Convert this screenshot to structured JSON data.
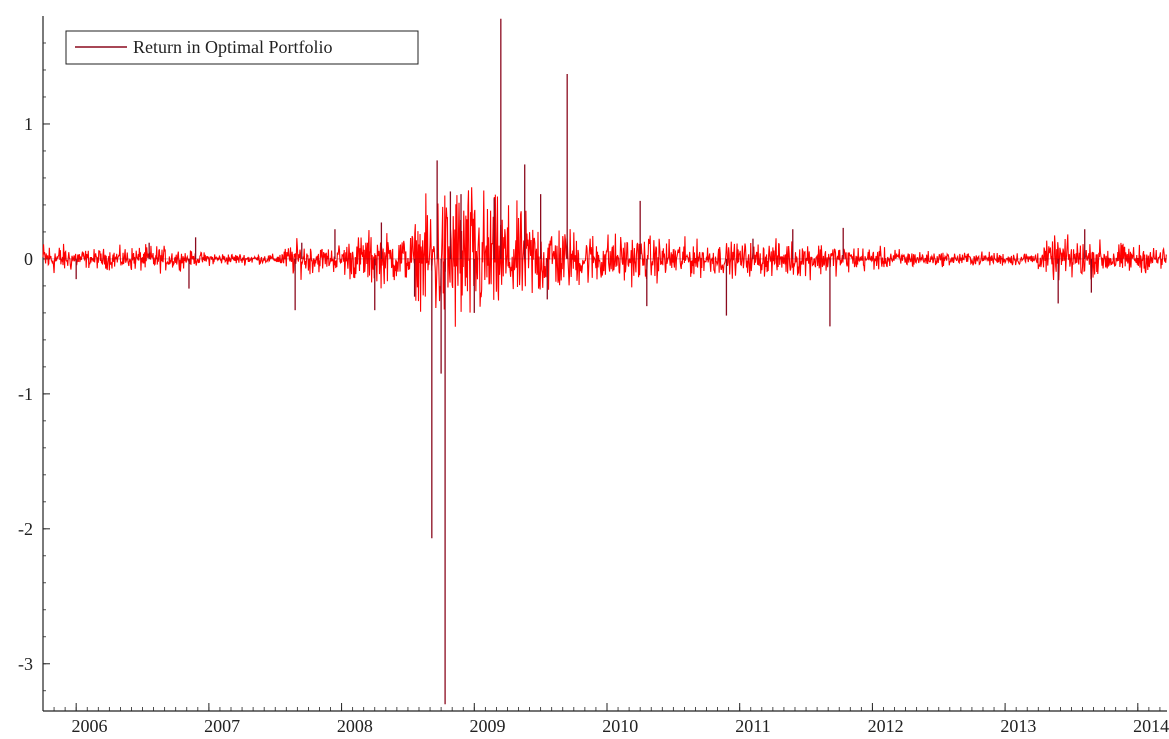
{
  "chart_data": {
    "type": "line",
    "title": "",
    "xlabel": "",
    "ylabel": "",
    "x_axis": {
      "range": [
        2005.75,
        2014.22
      ],
      "tick_labels": [
        "2006",
        "2007",
        "2008",
        "2009",
        "2010",
        "2011",
        "2012",
        "2013",
        "2014"
      ],
      "tick_values": [
        2006,
        2007,
        2008,
        2009,
        2010,
        2011,
        2012,
        2013,
        2014
      ]
    },
    "y_axis": {
      "range": [
        -3.35,
        1.8
      ],
      "tick_labels": [
        "-3",
        "-2",
        "-1",
        "0",
        "1"
      ],
      "tick_values": [
        -3,
        -2,
        -1,
        0,
        1
      ]
    },
    "grid": false,
    "legend": {
      "position": "top-left",
      "entries": [
        "Return in Optimal Portfolio"
      ]
    },
    "series": [
      {
        "name": "Return in Optimal Portfolio",
        "color": "#ff0000",
        "edge_color": "#8b0a1e",
        "sampling": "daily returns; representative amplitude envelope per period",
        "volatility_envelope": [
          {
            "x": 2005.75,
            "amp": 0.08
          },
          {
            "x": 2006.1,
            "amp": 0.04
          },
          {
            "x": 2006.6,
            "amp": 0.06
          },
          {
            "x": 2006.9,
            "amp": 0.03
          },
          {
            "x": 2007.5,
            "amp": 0.02
          },
          {
            "x": 2007.65,
            "amp": 0.08
          },
          {
            "x": 2007.9,
            "amp": 0.05
          },
          {
            "x": 2008.2,
            "amp": 0.12
          },
          {
            "x": 2008.5,
            "amp": 0.1
          },
          {
            "x": 2008.7,
            "amp": 0.3
          },
          {
            "x": 2008.9,
            "amp": 0.35
          },
          {
            "x": 2009.3,
            "amp": 0.22
          },
          {
            "x": 2009.8,
            "amp": 0.12
          },
          {
            "x": 2010.3,
            "amp": 0.1
          },
          {
            "x": 2010.8,
            "amp": 0.07
          },
          {
            "x": 2011.5,
            "amp": 0.08
          },
          {
            "x": 2011.8,
            "amp": 0.06
          },
          {
            "x": 2012.5,
            "amp": 0.03
          },
          {
            "x": 2013.2,
            "amp": 0.03
          },
          {
            "x": 2013.4,
            "amp": 0.1
          },
          {
            "x": 2013.8,
            "amp": 0.07
          },
          {
            "x": 2014.22,
            "amp": 0.05
          }
        ],
        "spikes": [
          {
            "x": 2006.0,
            "y": -0.15
          },
          {
            "x": 2006.55,
            "y": 0.12
          },
          {
            "x": 2006.85,
            "y": -0.22
          },
          {
            "x": 2006.9,
            "y": 0.16
          },
          {
            "x": 2007.65,
            "y": -0.38
          },
          {
            "x": 2007.7,
            "y": 0.12
          },
          {
            "x": 2007.95,
            "y": 0.22
          },
          {
            "x": 2008.25,
            "y": -0.38
          },
          {
            "x": 2008.3,
            "y": 0.27
          },
          {
            "x": 2008.55,
            "y": -0.28
          },
          {
            "x": 2008.68,
            "y": -2.07
          },
          {
            "x": 2008.72,
            "y": 0.73
          },
          {
            "x": 2008.75,
            "y": -0.85
          },
          {
            "x": 2008.78,
            "y": -3.3
          },
          {
            "x": 2008.82,
            "y": 0.5
          },
          {
            "x": 2008.9,
            "y": 0.48
          },
          {
            "x": 2009.0,
            "y": -0.4
          },
          {
            "x": 2009.15,
            "y": 0.45
          },
          {
            "x": 2009.2,
            "y": 1.78
          },
          {
            "x": 2009.38,
            "y": 0.7
          },
          {
            "x": 2009.5,
            "y": 0.48
          },
          {
            "x": 2009.55,
            "y": -0.3
          },
          {
            "x": 2009.7,
            "y": 1.37
          },
          {
            "x": 2010.25,
            "y": 0.43
          },
          {
            "x": 2010.3,
            "y": -0.35
          },
          {
            "x": 2010.9,
            "y": -0.42
          },
          {
            "x": 2011.1,
            "y": 0.15
          },
          {
            "x": 2011.4,
            "y": 0.22
          },
          {
            "x": 2011.68,
            "y": -0.5
          },
          {
            "x": 2011.78,
            "y": 0.23
          },
          {
            "x": 2013.4,
            "y": -0.33
          },
          {
            "x": 2013.6,
            "y": 0.22
          },
          {
            "x": 2013.65,
            "y": -0.25
          }
        ]
      }
    ]
  }
}
